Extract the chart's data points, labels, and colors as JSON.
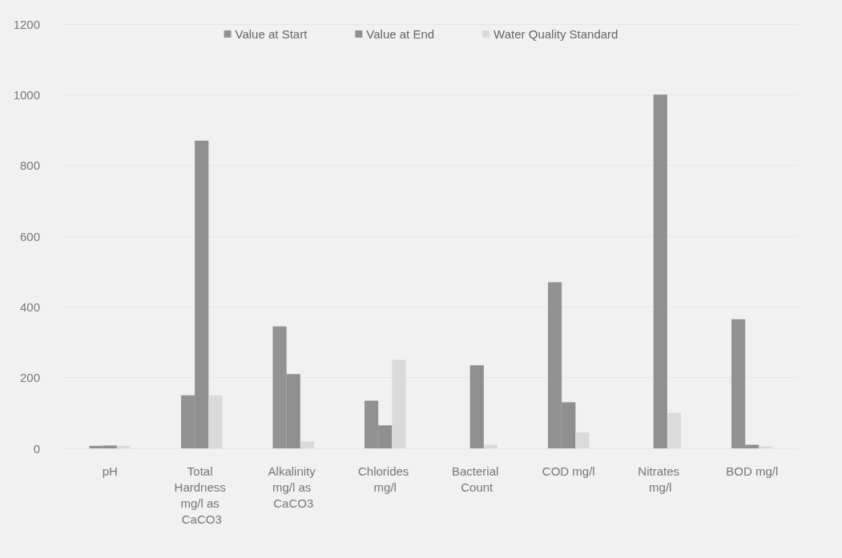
{
  "chart_data": {
    "type": "bar",
    "categories": [
      "pH",
      "Total Hardness mg/l as CaCO3",
      "Alkalinity mg/l as CaCO3",
      "Chlorides mg/l",
      "Bacterial Count",
      "COD mg/l",
      "Nitrates mg/l",
      "BOD mg/l"
    ],
    "series": [
      {
        "name": "Value at Start",
        "color": "#929292",
        "values": [
          7,
          150,
          345,
          135,
          null,
          470,
          null,
          365
        ]
      },
      {
        "name": "Value at End",
        "color": "#8f8f8f",
        "values": [
          8,
          870,
          210,
          65,
          235,
          130,
          1000,
          10
        ]
      },
      {
        "name": "Water Quality Standard",
        "color": "#dadada",
        "values": [
          7,
          150,
          20,
          250,
          10,
          45,
          100,
          5
        ]
      }
    ],
    "ylim": [
      0,
      1200
    ],
    "yticks": [
      0,
      200,
      400,
      600,
      800,
      1000,
      1200
    ],
    "grid": "y",
    "legend": "top"
  }
}
